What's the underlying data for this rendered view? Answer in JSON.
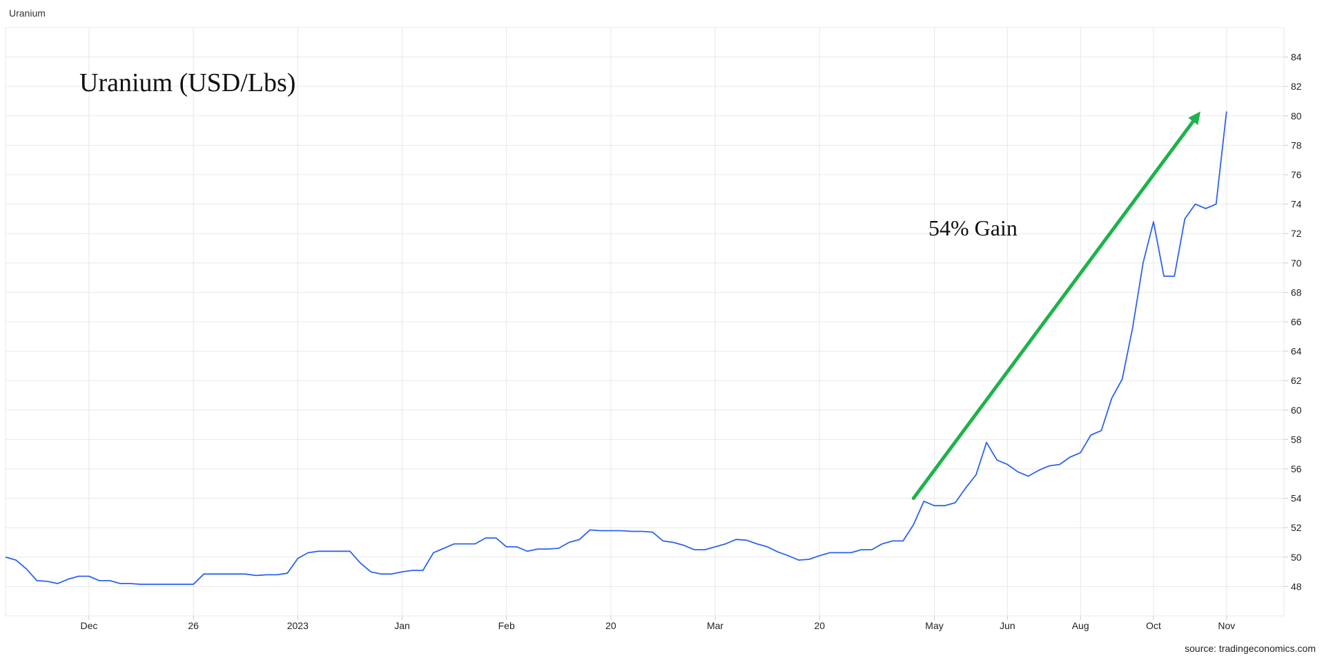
{
  "header": {
    "title": "Uranium"
  },
  "footer": {
    "source": "source: tradingeconomics.com"
  },
  "colors": {
    "line": "#2a62f0",
    "arrow": "#1db34a",
    "grid": "#e8e8e8"
  },
  "chart_data": {
    "type": "line",
    "title": "Uranium (USD/Lbs)",
    "annotation": "54% Gain",
    "xlabel": "",
    "ylabel": "",
    "ylim": [
      46,
      86
    ],
    "y_ticks": [
      48,
      50,
      52,
      54,
      56,
      58,
      60,
      62,
      64,
      66,
      68,
      70,
      72,
      74,
      76,
      78,
      80,
      82,
      84
    ],
    "y_axis_side": "right",
    "grid": true,
    "x_ticks": [
      {
        "label": "Dec",
        "x": 8
      },
      {
        "label": "26",
        "x": 18
      },
      {
        "label": "2023",
        "x": 28
      },
      {
        "label": "Jan",
        "x": 38
      },
      {
        "label": "Feb",
        "x": 48
      },
      {
        "label": "20",
        "x": 58
      },
      {
        "label": "Mar",
        "x": 68
      },
      {
        "label": "20",
        "x": 78
      },
      {
        "label": "May",
        "x": 89
      },
      {
        "label": "Jun",
        "x": 96
      },
      {
        "label": "Aug",
        "x": 103
      },
      {
        "label": "Oct",
        "x": 110
      },
      {
        "label": "Nov",
        "x": 117
      }
    ],
    "xlim": [
      0,
      122.5
    ],
    "series": [
      {
        "values": [
          [
            0,
            50.0
          ],
          [
            1,
            49.8
          ],
          [
            2,
            49.2
          ],
          [
            3,
            48.4
          ],
          [
            4,
            48.35
          ],
          [
            5,
            48.2
          ],
          [
            6,
            48.5
          ],
          [
            7,
            48.7
          ],
          [
            8,
            48.7
          ],
          [
            9,
            48.4
          ],
          [
            10,
            48.4
          ],
          [
            11,
            48.2
          ],
          [
            12,
            48.2
          ],
          [
            13,
            48.15
          ],
          [
            14,
            48.15
          ],
          [
            15,
            48.15
          ],
          [
            16,
            48.15
          ],
          [
            17,
            48.15
          ],
          [
            18,
            48.15
          ],
          [
            19,
            48.85
          ],
          [
            20,
            48.85
          ],
          [
            21,
            48.85
          ],
          [
            22,
            48.85
          ],
          [
            23,
            48.85
          ],
          [
            24,
            48.75
          ],
          [
            25,
            48.8
          ],
          [
            26,
            48.8
          ],
          [
            27,
            48.9
          ],
          [
            28,
            49.9
          ],
          [
            29,
            50.3
          ],
          [
            30,
            50.4
          ],
          [
            31,
            50.4
          ],
          [
            32,
            50.4
          ],
          [
            33,
            50.4
          ],
          [
            34,
            49.6
          ],
          [
            35,
            49.0
          ],
          [
            36,
            48.85
          ],
          [
            37,
            48.85
          ],
          [
            38,
            49.0
          ],
          [
            39,
            49.1
          ],
          [
            40,
            49.1
          ],
          [
            41,
            50.3
          ],
          [
            42,
            50.6
          ],
          [
            43,
            50.9
          ],
          [
            44,
            50.9
          ],
          [
            45,
            50.9
          ],
          [
            46,
            51.3
          ],
          [
            47,
            51.3
          ],
          [
            48,
            50.7
          ],
          [
            49,
            50.7
          ],
          [
            50,
            50.4
          ],
          [
            51,
            50.55
          ],
          [
            52,
            50.55
          ],
          [
            53,
            50.6
          ],
          [
            54,
            51.0
          ],
          [
            55,
            51.2
          ],
          [
            56,
            51.85
          ],
          [
            57,
            51.8
          ],
          [
            58,
            51.8
          ],
          [
            59,
            51.8
          ],
          [
            60,
            51.75
          ],
          [
            61,
            51.75
          ],
          [
            62,
            51.7
          ],
          [
            63,
            51.1
          ],
          [
            64,
            51.0
          ],
          [
            65,
            50.8
          ],
          [
            66,
            50.5
          ],
          [
            67,
            50.5
          ],
          [
            68,
            50.7
          ],
          [
            69,
            50.9
          ],
          [
            70,
            51.2
          ],
          [
            71,
            51.15
          ],
          [
            72,
            50.9
          ],
          [
            73,
            50.7
          ],
          [
            74,
            50.35
          ],
          [
            75,
            50.1
          ],
          [
            76,
            49.8
          ],
          [
            77,
            49.85
          ],
          [
            78,
            50.1
          ],
          [
            79,
            50.3
          ],
          [
            80,
            50.3
          ],
          [
            81,
            50.3
          ],
          [
            82,
            50.5
          ],
          [
            83,
            50.5
          ],
          [
            84,
            50.9
          ],
          [
            85,
            51.1
          ],
          [
            86,
            51.1
          ],
          [
            87,
            52.2
          ],
          [
            88,
            53.8
          ],
          [
            89,
            53.5
          ],
          [
            90,
            53.5
          ],
          [
            91,
            53.7
          ],
          [
            92,
            54.7
          ],
          [
            93,
            55.6
          ],
          [
            94,
            57.8
          ],
          [
            95,
            56.6
          ],
          [
            96,
            56.3
          ],
          [
            97,
            55.8
          ],
          [
            98,
            55.5
          ],
          [
            99,
            55.9
          ],
          [
            100,
            56.2
          ],
          [
            101,
            56.3
          ],
          [
            102,
            56.8
          ],
          [
            103,
            57.1
          ],
          [
            104,
            58.3
          ],
          [
            105,
            58.6
          ],
          [
            106,
            60.8
          ],
          [
            107,
            62.1
          ],
          [
            108,
            65.6
          ],
          [
            109,
            70.0
          ],
          [
            110,
            72.8
          ],
          [
            111,
            69.1
          ],
          [
            112,
            69.1
          ],
          [
            113,
            73.0
          ],
          [
            114,
            74.0
          ],
          [
            115,
            73.7
          ],
          [
            116,
            74.0
          ],
          [
            117,
            80.3
          ]
        ]
      }
    ],
    "arrow": {
      "from": [
        87,
        54.0
      ],
      "to": [
        114.5,
        80.3
      ]
    }
  }
}
